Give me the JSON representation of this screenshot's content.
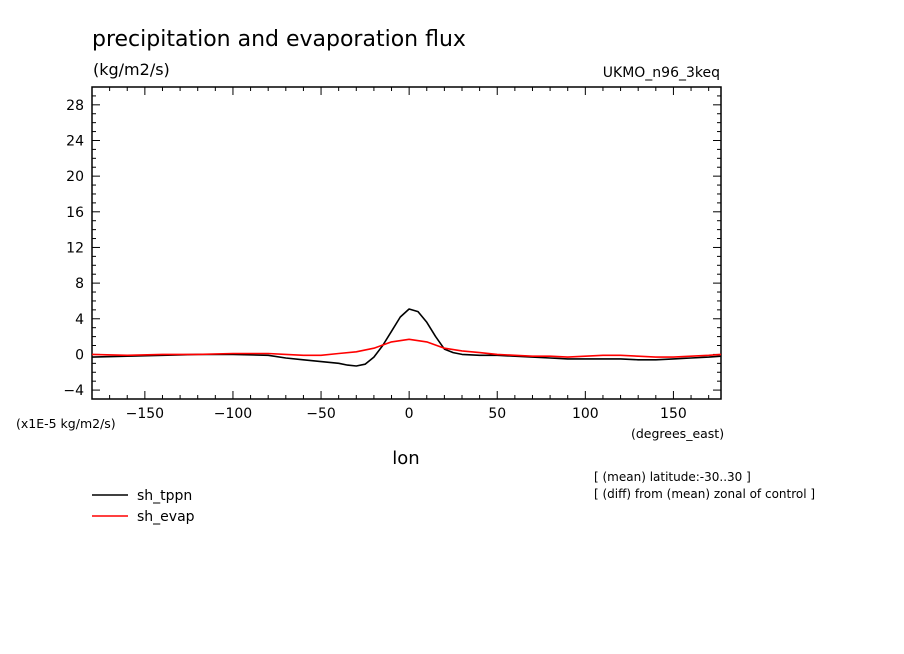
{
  "chart_data": {
    "type": "line",
    "title": "precipitation and evaporation flux",
    "units": "(kg/m2/s)",
    "model": "UKMO_n96_3keq",
    "scale_label": "(x1E-5 kg/m2/s)",
    "xlabel": "lon",
    "xunits": "(degrees_east)",
    "xlim": [
      -180,
      177
    ],
    "ylim": [
      -5,
      30
    ],
    "xticks": [
      -150,
      -100,
      -50,
      0,
      50,
      100,
      150
    ],
    "yticks": [
      -4,
      0,
      4,
      8,
      12,
      16,
      20,
      24,
      28
    ],
    "notes": [
      "[ (mean) latitude:-30..30 ]",
      "[ (diff) from (mean) zonal of control ]"
    ],
    "legend_position": "bottom-left",
    "series": [
      {
        "name": "sh_tppn",
        "color": "#000000",
        "x": [
          -180,
          -160,
          -140,
          -120,
          -100,
          -80,
          -70,
          -60,
          -50,
          -40,
          -35,
          -30,
          -25,
          -20,
          -15,
          -10,
          -5,
          0,
          5,
          10,
          15,
          20,
          25,
          30,
          40,
          50,
          60,
          70,
          80,
          90,
          100,
          110,
          120,
          130,
          140,
          150,
          160,
          170,
          177
        ],
        "y": [
          -0.3,
          -0.2,
          -0.1,
          0.0,
          0.0,
          -0.1,
          -0.4,
          -0.6,
          -0.8,
          -1.0,
          -1.2,
          -1.3,
          -1.1,
          -0.3,
          1.0,
          2.6,
          4.2,
          5.1,
          4.8,
          3.6,
          2.0,
          0.6,
          0.2,
          0.0,
          -0.1,
          -0.1,
          -0.2,
          -0.3,
          -0.4,
          -0.5,
          -0.5,
          -0.5,
          -0.5,
          -0.6,
          -0.6,
          -0.5,
          -0.4,
          -0.3,
          -0.2
        ]
      },
      {
        "name": "sh_evap",
        "color": "#ff0000",
        "x": [
          -180,
          -160,
          -140,
          -120,
          -100,
          -80,
          -70,
          -60,
          -50,
          -40,
          -30,
          -20,
          -10,
          0,
          10,
          20,
          30,
          40,
          50,
          60,
          70,
          80,
          90,
          100,
          110,
          120,
          130,
          140,
          150,
          160,
          170,
          177
        ],
        "y": [
          0.0,
          -0.1,
          0.0,
          0.0,
          0.1,
          0.1,
          0.0,
          -0.1,
          -0.1,
          0.1,
          0.3,
          0.7,
          1.4,
          1.7,
          1.4,
          0.7,
          0.4,
          0.2,
          0.0,
          -0.1,
          -0.2,
          -0.2,
          -0.3,
          -0.2,
          -0.1,
          -0.1,
          -0.2,
          -0.3,
          -0.3,
          -0.2,
          -0.1,
          0.0
        ]
      }
    ]
  }
}
